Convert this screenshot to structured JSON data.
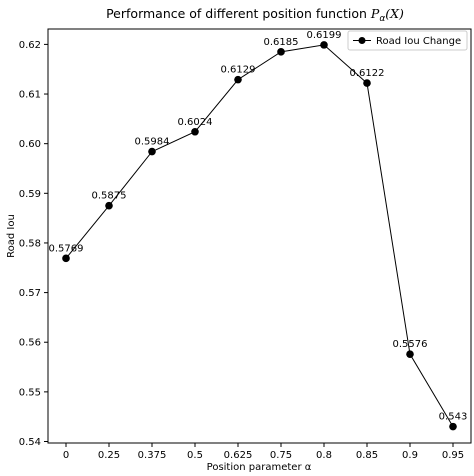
{
  "chart_data": {
    "type": "line",
    "title": "Performance of different position function ",
    "title_math": "P",
    "title_math_sub": "α",
    "title_math_arg": "(X)",
    "xlabel": "Position parameter α",
    "ylabel": "Road Iou",
    "categories": [
      "0",
      "0.25",
      "0.375",
      "0.5",
      "0.625",
      "0.75",
      "0.8",
      "0.85",
      "0.9",
      "0.95"
    ],
    "series": [
      {
        "name": "Road Iou Change",
        "values": [
          0.5769,
          0.5875,
          0.5984,
          0.6024,
          0.6129,
          0.6185,
          0.6199,
          0.6122,
          0.5576,
          0.543
        ],
        "value_labels": [
          "0.5769",
          "0.5875",
          "0.5984",
          "0.6024",
          "0.6129",
          "0.6185",
          "0.6199",
          "0.6122",
          "0.5576",
          "0.543"
        ]
      }
    ],
    "ylim": [
      0.5397,
      0.6231
    ],
    "yticks": [
      0.54,
      0.55,
      0.56,
      0.57,
      0.58,
      0.59,
      0.6,
      0.61,
      0.62
    ],
    "ytick_labels": [
      "0.54",
      "0.55",
      "0.56",
      "0.57",
      "0.58",
      "0.59",
      "0.60",
      "0.61",
      "0.62"
    ],
    "grid": false,
    "legend_position": "top-right",
    "colors": {
      "line": "#000000",
      "marker": "#000000"
    }
  }
}
